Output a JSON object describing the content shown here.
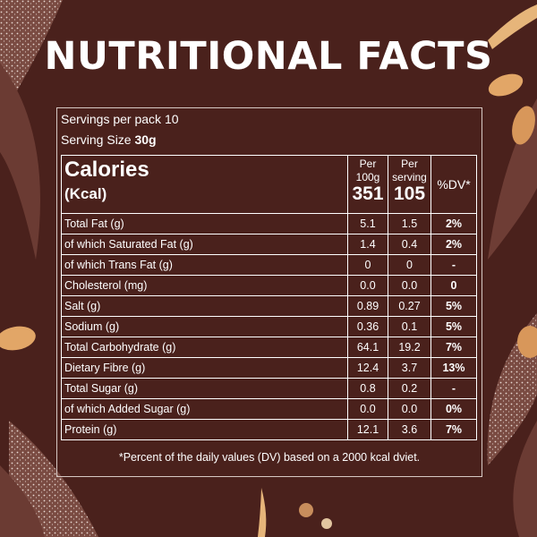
{
  "title": "NUTRITIONAL FACTS",
  "servings": {
    "prefix": "Servings per pack",
    "value": "10"
  },
  "serving_size": {
    "prefix": "Serving Size",
    "value": "30g"
  },
  "header": {
    "calories": "Calories",
    "unit": "(Kcal)",
    "per100_label_1": "Per",
    "per100_label_2": "100g",
    "per100_value": "351",
    "perserv_label_1": "Per",
    "perserv_label_2": "serving",
    "perserv_value": "105",
    "dv_label": "%DV*"
  },
  "rows": [
    {
      "name": "Total Fat (g)",
      "per100": "5.1",
      "perserv": "1.5",
      "dv": "2%"
    },
    {
      "name": " of which Saturated Fat (g)",
      "per100": "1.4",
      "perserv": "0.4",
      "dv": "2%"
    },
    {
      "name": " of which Trans Fat (g)",
      "per100": "0",
      "perserv": "0",
      "dv": "-"
    },
    {
      "name": "Cholesterol (mg)",
      "per100": "0.0",
      "perserv": "0.0",
      "dv": "0"
    },
    {
      "name": "Salt (g)",
      "per100": "0.89",
      "perserv": "0.27",
      "dv": "5%"
    },
    {
      "name": "Sodium (g)",
      "per100": "0.36",
      "perserv": "0.1",
      "dv": "5%"
    },
    {
      "name": "Total Carbohydrate (g)",
      "per100": "64.1",
      "perserv": "19.2",
      "dv": "7%"
    },
    {
      "name": "Dietary Fibre (g)",
      "per100": "12.4",
      "perserv": "3.7",
      "dv": "13%"
    },
    {
      "name": "Total Sugar (g)",
      "per100": "0.8",
      "perserv": "0.2",
      "dv": "-"
    },
    {
      "name": " of which Added Sugar (g)",
      "per100": "0.0",
      "perserv": "0.0",
      "dv": "0%"
    },
    {
      "name": "Protein (g)",
      "per100": "12.1",
      "perserv": "3.6",
      "dv": "7%"
    }
  ],
  "footnote": "*Percent of the daily values (DV) based on a 2000 kcal dviet.",
  "colors": {
    "background": "#4a211c",
    "leaf": "#6b3b33",
    "oat": "#e2a667",
    "text": "#ffffff"
  }
}
